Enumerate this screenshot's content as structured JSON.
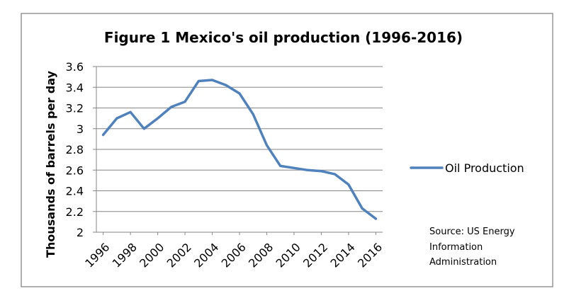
{
  "chart_data": {
    "type": "line",
    "title": "Figure 1 Mexico's oil production (1996-2016)",
    "xlabel": "",
    "ylabel": "Thousands of  barrels per day",
    "x": [
      1996,
      1997,
      1998,
      1999,
      2000,
      2001,
      2002,
      2003,
      2004,
      2005,
      2006,
      2007,
      2008,
      2009,
      2010,
      2011,
      2012,
      2013,
      2014,
      2015,
      2016
    ],
    "x_tick_labels": [
      "1996",
      "1998",
      "2000",
      "2002",
      "2004",
      "2006",
      "2008",
      "2010",
      "2012",
      "2014",
      "2016"
    ],
    "y_tick_labels": [
      "2",
      "2.2",
      "2.4",
      "2.6",
      "2.8",
      "3",
      "3.2",
      "3.4",
      "3.6"
    ],
    "ylim": [
      2,
      3.6
    ],
    "grid": true,
    "legend_position": "right",
    "series": [
      {
        "name": "Oil Production",
        "color": "#4F81BD",
        "values": [
          2.94,
          3.1,
          3.16,
          3.0,
          3.1,
          3.21,
          3.26,
          3.46,
          3.47,
          3.42,
          3.34,
          3.14,
          2.84,
          2.64,
          2.62,
          2.6,
          2.59,
          2.56,
          2.46,
          2.23,
          2.13
        ]
      }
    ],
    "source_lines": [
      "Source: US Energy",
      "Information",
      "Administration"
    ]
  }
}
